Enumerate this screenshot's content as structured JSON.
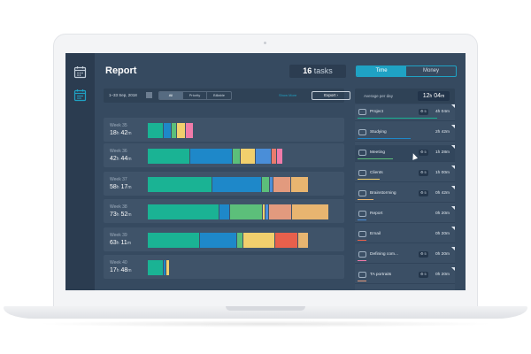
{
  "header": {
    "title": "Report",
    "tasks_count": "16",
    "tasks_label": "tasks",
    "toggle": [
      "Time",
      "Money"
    ]
  },
  "controls": {
    "date_range": "1–33 Sep, 2018",
    "filters": [
      "All",
      "Priority",
      "Billable"
    ],
    "show_more": "Show More",
    "export_label": "Export ›"
  },
  "summary": {
    "avg_label": "Average per day",
    "avg_hours": "12",
    "avg_minutes": "04",
    "h_unit": "h",
    "m_unit": "m"
  },
  "weeks": [
    {
      "name": "Week 35",
      "hours": "18",
      "minutes": "42",
      "segments": [
        {
          "color": "#1ab394",
          "value": 6
        },
        {
          "color": "#1e88c9",
          "value": 3
        },
        {
          "color": "#5cbf7a",
          "value": 2
        },
        {
          "color": "#f1cf6d",
          "value": 3
        },
        {
          "color": "#f07ba9",
          "value": 3
        }
      ]
    },
    {
      "name": "Week 36",
      "hours": "42",
      "minutes": "44",
      "segments": [
        {
          "color": "#1ab394",
          "value": 17
        },
        {
          "color": "#1e88c9",
          "value": 17
        },
        {
          "color": "#5cbf7a",
          "value": 3
        },
        {
          "color": "#f1cf6d",
          "value": 6
        },
        {
          "color": "#4a8ed8",
          "value": 6
        },
        {
          "color": "#e97b6d",
          "value": 2
        },
        {
          "color": "#f07ba9",
          "value": 2
        }
      ]
    },
    {
      "name": "Week 37",
      "hours": "58",
      "minutes": "17",
      "segments": [
        {
          "color": "#1ab394",
          "value": 26
        },
        {
          "color": "#1e88c9",
          "value": 20
        },
        {
          "color": "#5cbf7a",
          "value": 3
        },
        {
          "color": "#4a8ed8",
          "value": 1
        },
        {
          "color": "#e29a7e",
          "value": 7
        },
        {
          "color": "#e8b570",
          "value": 7
        }
      ]
    },
    {
      "name": "Week 38",
      "hours": "73",
      "minutes": "52",
      "segments": [
        {
          "color": "#1ab394",
          "value": 29
        },
        {
          "color": "#1e88c9",
          "value": 4
        },
        {
          "color": "#5cbf7a",
          "value": 13
        },
        {
          "color": "#f1cf6d",
          "value": 1
        },
        {
          "color": "#4a8ed8",
          "value": 1
        },
        {
          "color": "#e29a7e",
          "value": 9
        },
        {
          "color": "#e8b570",
          "value": 15
        }
      ]
    },
    {
      "name": "Week 39",
      "hours": "63",
      "minutes": "11",
      "segments": [
        {
          "color": "#1ab394",
          "value": 21
        },
        {
          "color": "#1e88c9",
          "value": 15
        },
        {
          "color": "#5cbf7a",
          "value": 2
        },
        {
          "color": "#f1cf6d",
          "value": 13
        },
        {
          "color": "#e8604c",
          "value": 9
        },
        {
          "color": "#e8b570",
          "value": 4
        }
      ]
    },
    {
      "name": "Week 40",
      "hours": "17",
      "minutes": "48",
      "segments": [
        {
          "color": "#1ab394",
          "value": 6
        },
        {
          "color": "#1e88c9",
          "value": 1
        },
        {
          "color": "#f1cf6d",
          "value": 1
        }
      ]
    }
  ],
  "categories": [
    {
      "name": "Project",
      "badge": "5",
      "time": "4h 04m",
      "icon": "folder-icon",
      "line_color": "#1ab394",
      "line_len": 0.9
    },
    {
      "name": "Studying",
      "badge": "",
      "time": "2h 42m",
      "icon": "book-icon",
      "line_color": "#1e88c9",
      "line_len": 0.6
    },
    {
      "name": "Meeting",
      "badge": "5",
      "time": "1h 28m",
      "icon": "chat-icon",
      "line_color": "#5cbf7a",
      "line_len": 0.4
    },
    {
      "name": "Clients",
      "badge": "5",
      "time": "1h 00m",
      "icon": "people-icon",
      "line_color": "#f1cf6d",
      "line_len": 0.25
    },
    {
      "name": "Brainstorming",
      "badge": "5",
      "time": "0h 42m",
      "icon": "lightbulb-icon",
      "line_color": "#e8b570",
      "line_len": 0.18
    },
    {
      "name": "Report",
      "badge": "",
      "time": "0h 20m",
      "icon": "chart-icon",
      "line_color": "#4a8ed8",
      "line_len": 0.1
    },
    {
      "name": "Email",
      "badge": "",
      "time": "0h 20m",
      "icon": "mail-icon",
      "line_color": "#e8604c",
      "line_len": 0.1
    },
    {
      "name": "Defining com...",
      "badge": "5",
      "time": "0h 20m",
      "icon": "target-icon",
      "line_color": "#f07ba9",
      "line_len": 0.1
    },
    {
      "name": "TA portraits",
      "badge": "5",
      "time": "0h 20m",
      "icon": "lock-icon",
      "line_color": "#e29a7e",
      "line_len": 0.1
    }
  ]
}
